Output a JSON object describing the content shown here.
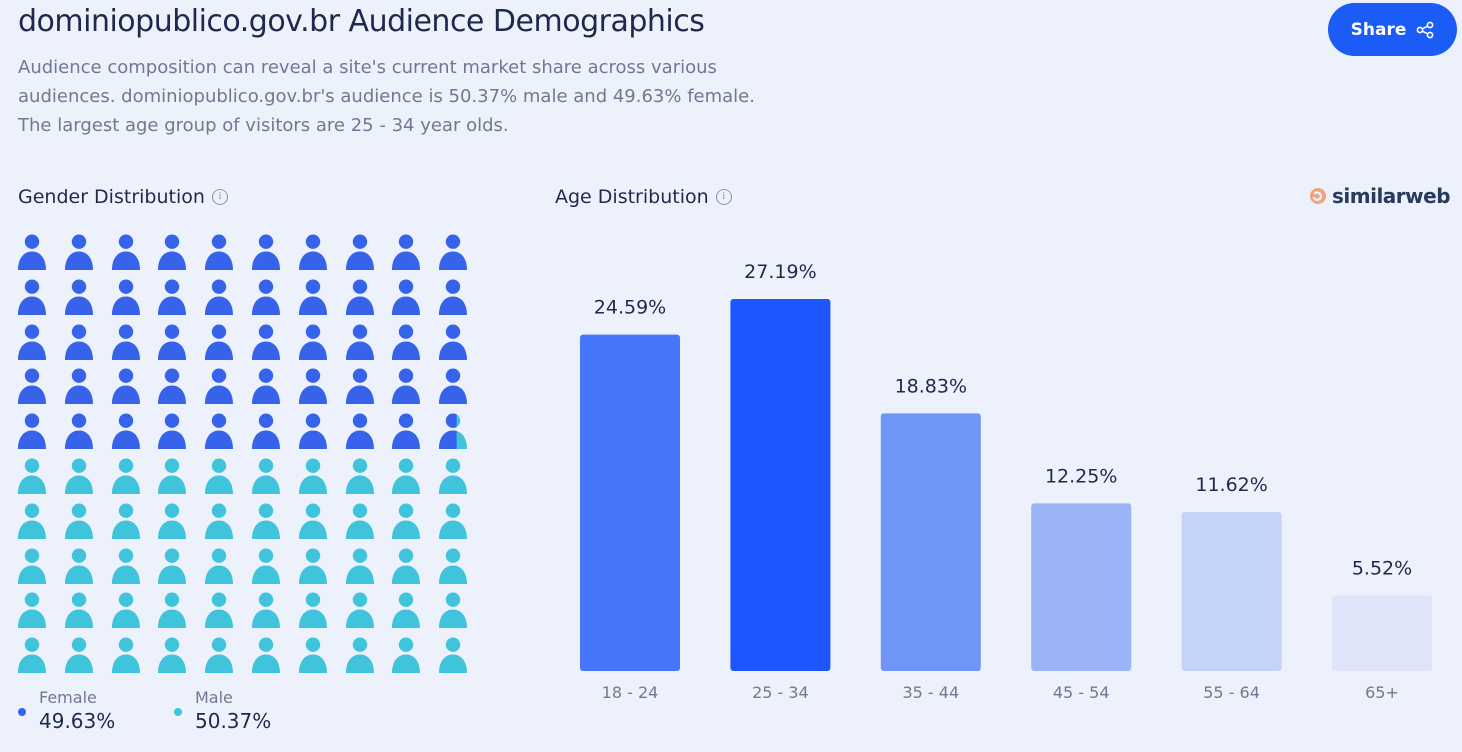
{
  "header": {
    "title": "dominiopublico.gov.br Audience Demographics",
    "description_lines": [
      "Audience composition can reveal a site's current market share across various",
      "audiences. dominiopublico.gov.br's audience is 50.37% male and 49.63% female.",
      "The largest age group of visitors are 25 - 34 year olds."
    ],
    "share_label": "Share",
    "share_icon": "share-icon"
  },
  "brand": {
    "name": "similarweb",
    "logo_icon": "similarweb-logo-icon"
  },
  "gender": {
    "section_title": "Gender Distribution",
    "info_icon": "info-icon",
    "colors": {
      "female": "#3663ea",
      "male": "#3fc4dc"
    },
    "legend": [
      {
        "label": "Female",
        "value": "49.63%",
        "percent": 49.63,
        "color": "#3663ea"
      },
      {
        "label": "Male",
        "value": "50.37%",
        "percent": 50.37,
        "color": "#3fc4dc"
      }
    ]
  },
  "chart_data": {
    "type": "bar",
    "title": "Age Distribution",
    "categories": [
      "18 - 24",
      "25 - 34",
      "35 - 44",
      "45 - 54",
      "55 - 64",
      "65+"
    ],
    "values": [
      24.59,
      27.19,
      18.83,
      12.25,
      11.62,
      5.52
    ],
    "value_labels": [
      "24.59%",
      "27.19%",
      "18.83%",
      "12.25%",
      "11.62%",
      "5.52%"
    ],
    "colors": [
      "#4677fb",
      "#1c56fc",
      "#6f95f8",
      "#9bb4f8",
      "#c5d3f8",
      "#dee5f8"
    ],
    "ylim": [
      0,
      27.19
    ],
    "grid": false,
    "legend": "none"
  }
}
